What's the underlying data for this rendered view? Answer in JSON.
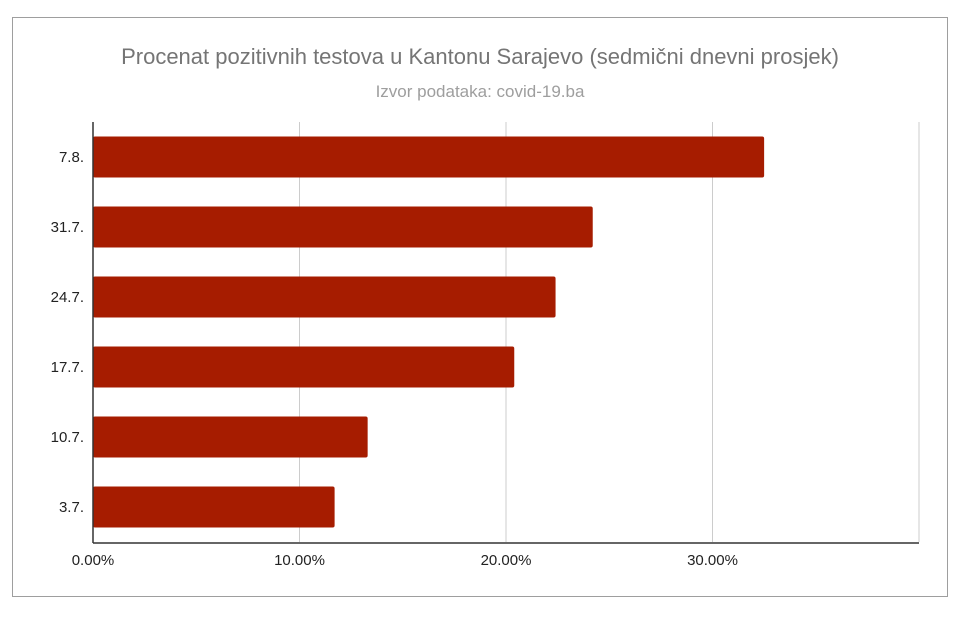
{
  "chart_data": {
    "type": "bar",
    "orientation": "horizontal",
    "title": "Procenat pozitivnih testova u Kantonu Sarajevo (sedmični dnevni prosjek)",
    "subtitle": "Izvor podataka: covid-19.ba",
    "categories": [
      "7.8.",
      "31.7.",
      "24.7.",
      "17.7.",
      "10.7.",
      "3.7."
    ],
    "values": [
      32.5,
      24.2,
      22.4,
      20.4,
      13.3,
      11.7
    ],
    "x_ticks": [
      "0.00%",
      "10.00%",
      "20.00%",
      "30.00%"
    ],
    "xlim": [
      0,
      40
    ],
    "grid": true,
    "legend": "none",
    "bar_color": "#a61c00",
    "grid_color": "#cccccc",
    "axis_color": "#333333"
  }
}
